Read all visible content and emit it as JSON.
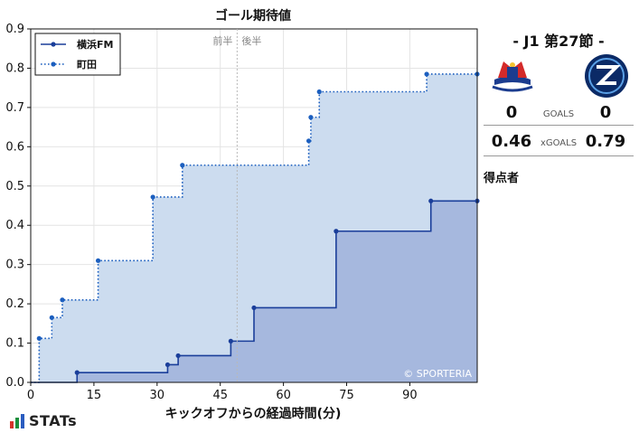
{
  "chart_data": {
    "type": "line",
    "title": "ゴール期待値",
    "xlabel": "キックオフからの経過時間(分)",
    "ylabel": "",
    "xlim": [
      0,
      106
    ],
    "ylim": [
      0,
      0.9
    ],
    "xticks": [
      0,
      15,
      30,
      45,
      60,
      75,
      90
    ],
    "yticks": [
      0.0,
      0.1,
      0.2,
      0.3,
      0.4,
      0.5,
      0.6,
      0.7,
      0.8,
      0.9
    ],
    "ytick_labels": [
      "0.0",
      "0.1",
      "0.2",
      "0.3",
      "0.4",
      "0.5",
      "0.6",
      "0.7",
      "0.8",
      "0.9"
    ],
    "xtick_labels": [
      "0",
      "15",
      "30",
      "45",
      "60",
      "75",
      "90"
    ],
    "step": true,
    "half_time_x": 49,
    "half_labels": [
      "前半",
      "後半"
    ],
    "grid": true,
    "legend_position": "top-left",
    "watermark": "© SPORTERIA",
    "series": [
      {
        "name": "横浜FM",
        "color": "#1a3e9a",
        "fill": "#a6b8de",
        "linestyle": "solid",
        "x": [
          11,
          32.5,
          35,
          47.5,
          53,
          72.5,
          95,
          106
        ],
        "y": [
          0.025,
          0.045,
          0.068,
          0.105,
          0.19,
          0.385,
          0.462,
          0.462
        ]
      },
      {
        "name": "町田",
        "color": "#1c5fbf",
        "fill": "#ccdcef",
        "linestyle": "dotted",
        "x": [
          2,
          5,
          7.5,
          16,
          29,
          36,
          66,
          66.5,
          68.5,
          94,
          106
        ],
        "y": [
          0.112,
          0.165,
          0.21,
          0.31,
          0.472,
          0.553,
          0.615,
          0.675,
          0.74,
          0.785,
          0.785
        ]
      }
    ]
  },
  "panel": {
    "match_title": "- J1 第27節 -",
    "home_crest": "yokohama-fm-crest",
    "away_crest": "machida-zelvia-crest",
    "home_goals": "0",
    "away_goals": "0",
    "goals_label": "GOALS",
    "home_xg": "0.46",
    "away_xg": "0.79",
    "xg_label": "xGOALS",
    "scorers_label": "得点者"
  },
  "brand": {
    "name": "STATs",
    "bar_colors": [
      "#d6342c",
      "#1c8f3c",
      "#2a5cc0"
    ]
  }
}
